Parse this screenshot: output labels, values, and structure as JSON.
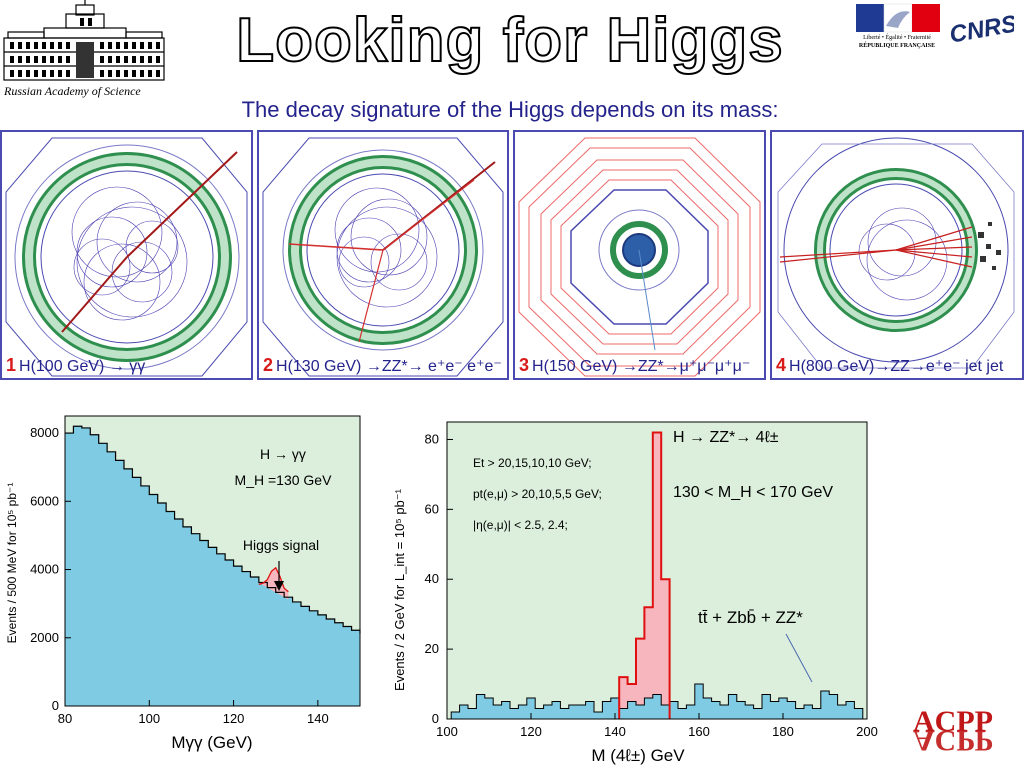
{
  "header": {
    "title": "Looking for Higgs",
    "subtitle": "The decay signature of the Higgs depends on its mass:",
    "ras_caption": "Russian Academy of Science",
    "rf_caption_line1": "Liberté • Égalité • Fraternité",
    "rf_caption_line2": "RÉPUBLIQUE FRANÇAISE",
    "cnrs_logo": "CNRS",
    "acpp_logo": "ACPP"
  },
  "panels": [
    {
      "number": "1",
      "caption": "H(100 GeV) → γγ"
    },
    {
      "number": "2",
      "caption": "H(130 GeV) →ZZ*→ e⁺e⁻ e⁺e⁻"
    },
    {
      "number": "3",
      "caption": "H(150 GeV) →ZZ*→μ⁺μ⁻μ⁺μ⁻"
    },
    {
      "number": "4",
      "caption": "H(800 GeV)→ZZ→e⁺e⁻ jet jet"
    }
  ],
  "colors": {
    "background_fill": "#dcefdc",
    "histogram_fill": "#7ecbe3",
    "signal_fill": "#f7b6bd",
    "signal_line": "#e01010",
    "title_navy": "#24248c",
    "panel_number": "#d81b1b"
  },
  "chart_data": [
    {
      "type": "area",
      "xlabel": "Mγγ (GeV)",
      "ylabel": "Events / 500 MeV for 10⁵ pb⁻¹",
      "xlim": [
        80,
        150
      ],
      "ylim": [
        0,
        8500
      ],
      "xticks": [
        80,
        100,
        120,
        140
      ],
      "yticks": [
        0,
        2000,
        4000,
        6000,
        8000
      ],
      "annotations": {
        "process": "H → γγ",
        "mass": "M_H =130 GeV",
        "signal_label": "Higgs signal"
      },
      "series": [
        {
          "name": "background",
          "x": [
            80,
            82,
            84,
            86,
            88,
            90,
            92,
            94,
            96,
            98,
            100,
            102,
            104,
            106,
            108,
            110,
            112,
            114,
            116,
            118,
            120,
            122,
            124,
            126,
            128,
            130,
            132,
            134,
            136,
            138,
            140,
            142,
            144,
            146,
            148,
            150
          ],
          "values": [
            8000,
            8200,
            8150,
            7950,
            7700,
            7450,
            7200,
            6950,
            6700,
            6450,
            6200,
            5950,
            5700,
            5480,
            5250,
            5050,
            4850,
            4650,
            4460,
            4280,
            4100,
            3940,
            3780,
            3620,
            3470,
            3330,
            3190,
            3050,
            2920,
            2790,
            2670,
            2550,
            2440,
            2330,
            2220,
            2130
          ]
        },
        {
          "name": "signal",
          "x": [
            126,
            127,
            128,
            129,
            130,
            131,
            132,
            133
          ],
          "values": [
            3560,
            3600,
            3700,
            3950,
            4050,
            3800,
            3450,
            3350
          ]
        }
      ]
    },
    {
      "type": "bar",
      "xlabel": "M (4ℓ±) GeV",
      "ylabel": "Events / 2 GeV for L_int = 10⁵ pb⁻¹",
      "xlim": [
        100,
        200
      ],
      "ylim": [
        0,
        85
      ],
      "xticks": [
        100,
        120,
        140,
        160,
        180,
        200
      ],
      "yticks": [
        0,
        20,
        40,
        60,
        80
      ],
      "annotations": {
        "cuts_line1": "Et > 20,15,10,10 GeV;",
        "cuts_line2": "pt(e,μ) > 20,10,5,5 GeV;",
        "cuts_line3": "|η(e,μ)| < 2.5, 2.4;",
        "process": "H → ZZ*→ 4ℓ±",
        "mass_range": "130 < M_H < 170 GeV",
        "background_label": "tt̄ + Zbb̄ + ZZ*"
      },
      "series": [
        {
          "name": "background",
          "x": [
            102,
            104,
            106,
            108,
            110,
            112,
            114,
            116,
            118,
            120,
            122,
            124,
            126,
            128,
            130,
            132,
            134,
            136,
            138,
            140,
            142,
            144,
            146,
            148,
            150,
            152,
            154,
            156,
            158,
            160,
            162,
            164,
            166,
            168,
            170,
            172,
            174,
            176,
            178,
            180,
            182,
            184,
            186,
            188,
            190,
            192,
            194,
            196,
            198
          ],
          "values": [
            2,
            4,
            3,
            7,
            6,
            4,
            5,
            3,
            4,
            6,
            3,
            4,
            5,
            3,
            4,
            4,
            5,
            2,
            5,
            6,
            3,
            5,
            4,
            6,
            7,
            4,
            5,
            3,
            4,
            10,
            6,
            5,
            4,
            7,
            5,
            4,
            3,
            7,
            5,
            6,
            5,
            3,
            4,
            3,
            8,
            7,
            4,
            5,
            3
          ]
        },
        {
          "name": "signal",
          "x": [
            142,
            144,
            146,
            148,
            150,
            152
          ],
          "values": [
            12,
            10,
            23,
            32,
            82,
            40
          ]
        }
      ]
    }
  ]
}
